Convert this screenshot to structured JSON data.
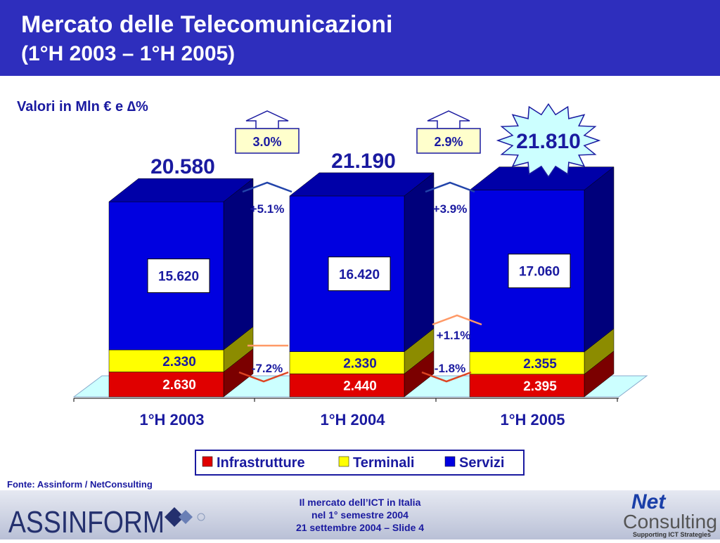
{
  "header": {
    "title": "Mercato delle Telecomunicazioni",
    "subtitle": "(1°H 2003 – 1°H 2005)"
  },
  "chart_data": {
    "type": "bar",
    "stacked": true,
    "three_d": true,
    "legend": "bottom",
    "title": "Valori in Mln € e ∆%",
    "categories": [
      "1°H 2003",
      "1°H 2004",
      "1°H 2005"
    ],
    "series": [
      {
        "name": "Infrastrutture",
        "color": "#e00000",
        "values": [
          2630,
          2440,
          2395
        ],
        "value_labels": [
          "2.630",
          "2.440",
          "2.395"
        ]
      },
      {
        "name": "Terminali",
        "color": "#ffff00",
        "values": [
          2330,
          2330,
          2355
        ],
        "value_labels": [
          "2.330",
          "2.330",
          "2.355"
        ]
      },
      {
        "name": "Servizi",
        "color": "#0000e0",
        "values": [
          15620,
          16420,
          17060
        ],
        "value_labels": [
          "15.620",
          "16.420",
          "17.060"
        ]
      }
    ],
    "totals": {
      "values": [
        20580,
        21190,
        21810
      ],
      "value_labels": [
        "20.580",
        "21.190",
        "21.810"
      ]
    },
    "total_growth": [
      "3.0%",
      "2.9%"
    ],
    "servizi_growth": [
      "+5.1%",
      "+3.9%"
    ],
    "terminali_growth": [
      "+1.1%"
    ],
    "infrastrutture_growth": [
      "-7.2%",
      "-1.8%"
    ]
  },
  "source": "Fonte: Assinform / NetConsulting",
  "footer": {
    "lines": [
      "Il mercato dell’ICT in Italia",
      "nel 1° semestre 2004",
      "21 settembre 2004 – Slide 4"
    ]
  },
  "logos": {
    "left": "ASSINFORM",
    "right_top": "Net",
    "right_bottom": "Consulting",
    "tagline": "Supporting ICT Strategies"
  }
}
